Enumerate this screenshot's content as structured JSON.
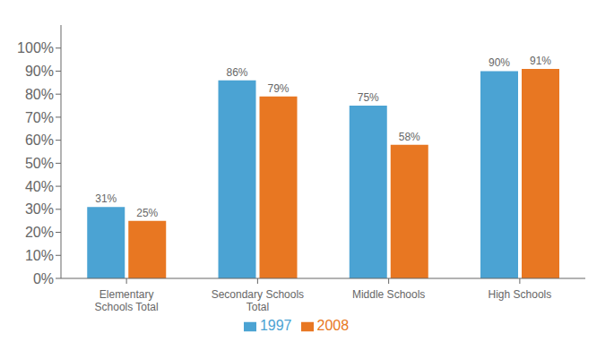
{
  "chart_data": {
    "type": "bar",
    "categories": [
      "Elementary\nSchools Total",
      "Secondary Schools\nTotal",
      "Middle Schools",
      "High Schools"
    ],
    "series": [
      {
        "name": "1997",
        "color": "#4BA3D3",
        "values": [
          31,
          86,
          75,
          90
        ],
        "value_labels": [
          "31%",
          "86%",
          "75%",
          "90%"
        ]
      },
      {
        "name": "2008",
        "color": "#E87722",
        "values": [
          25,
          79,
          58,
          91
        ],
        "value_labels": [
          "25%",
          "79%",
          "58%",
          "91%"
        ]
      }
    ],
    "ylim": [
      0,
      110
    ],
    "yticks": [
      {
        "value": 0,
        "label": "0%"
      },
      {
        "value": 10,
        "label": "10%"
      },
      {
        "value": 20,
        "label": "20%"
      },
      {
        "value": 30,
        "label": "30%"
      },
      {
        "value": 40,
        "label": "40%"
      },
      {
        "value": 50,
        "label": "50%"
      },
      {
        "value": 60,
        "label": "60%"
      },
      {
        "value": 70,
        "label": "70%"
      },
      {
        "value": 80,
        "label": "80%"
      },
      {
        "value": 90,
        "label": "90%"
      },
      {
        "value": 100,
        "label": "100%"
      }
    ],
    "data_labels": true,
    "legend": "bottom",
    "grid": false
  }
}
